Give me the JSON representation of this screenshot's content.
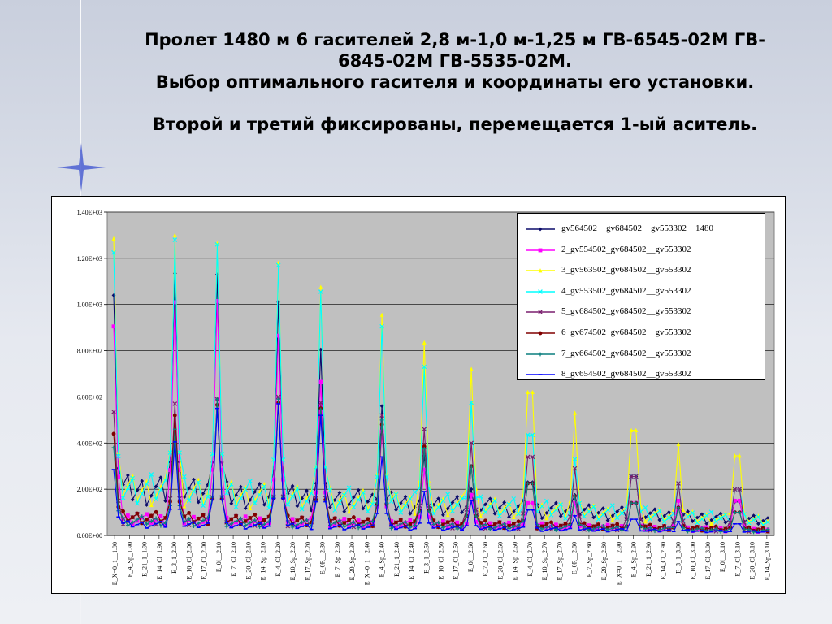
{
  "slide": {
    "title_lines": [
      "Пролет 1480 м 6 гасителей 2,8 м-1,0 м-1,25 м ГВ-6545-02М  ГВ-",
      "6845-02М   ГВ-5535-02М.",
      "Выбор оптимального гасителя и координаты его установки.",
      "Второй и третий фиксированы, перемещается 1-ый аситель."
    ]
  },
  "chart_data": {
    "type": "line",
    "ylim": [
      0,
      1400
    ],
    "ytick_values": [
      0,
      200,
      400,
      600,
      800,
      1000,
      1200,
      1400
    ],
    "ytick_labels": [
      "0.00E+00",
      "2.00E+02",
      "4.00E+02",
      "6.00E+02",
      "8.00E+02",
      "1.00E+03",
      "1.20E+03",
      "1.40E+03"
    ],
    "grid": "horizontal",
    "legend_position": "top-right",
    "x_tick_labels": [
      "E_X=0_1__1.90",
      "E_4_Sp_1.90",
      "E_21_1_1.90",
      "E_14_Cl_1.90",
      "E_3_1_2.00",
      "E_10_Cl_2.00",
      "E_17_Cl_2.00",
      "E_0l__2.10",
      "E_7_Cl_2.10",
      "E_20_Cl_2.10",
      "E_14_Sp_2.10",
      "E_4_Cl_2.20",
      "E_10_Sp_2.20",
      "E_17_Sp_2.20",
      "E_0R__2.30",
      "E_7_Sp_2.30",
      "E_20_Sp_2.30",
      "E_X=0_1__2.40",
      "E_4_Sp_2.40",
      "E_21_1_2.40",
      "E_14_Cl_2.40",
      "E_3_1_2.50",
      "E_10_Cl_2.50",
      "E_17_Cl_2.50",
      "E_0l__2.60",
      "E_7_Cl_2.60",
      "E_20_Cl_2.60",
      "E_14_Sp_2.60",
      "E_4_Cl_2.70",
      "E_10_Sp_2.70",
      "E_17_Sp_2.70",
      "E_0R__2.80",
      "E_7_Sp_2.80",
      "E_20_Sp_2.80",
      "E_X=0_1__2.90",
      "E_4_Sp_2.90",
      "E_21_1_2.90",
      "E_14_Cl_2.90",
      "E_3_1_3.00",
      "E_10_Cl_3.00",
      "E_17_Cl_3.00",
      "E_0l__3.10",
      "E_7_Cl_3.10",
      "E_20_Cl_3.10",
      "E_14_Sp_3.10"
    ],
    "peaks": {
      "positions": [
        "E_X=0_1__1.90",
        "E_3_1_2.00",
        "E_0l__2.10",
        "E_4_Cl_2.20",
        "E_0R__2.30",
        "E_4_Sp_2.40",
        "E_3_1_2.50",
        "E_0l__2.60",
        "E_4_Cl_2.70",
        "E_0R__2.80",
        "E_4_Sp_2.90",
        "E_3_1_3.00",
        "E_7_Cl_3.10"
      ],
      "series_peak_values": [
        [
          1040,
          1135,
          1130,
          1010,
          805,
          560,
          345,
          200,
          230,
          175,
          255,
          125,
          145
        ],
        [
          905,
          1010,
          1015,
          865,
          665,
          450,
          285,
          175,
          140,
          140,
          140,
          150,
          150
        ],
        [
          1285,
          1300,
          1265,
          1180,
          1075,
          955,
          835,
          720,
          620,
          530,
          455,
          395,
          345
        ],
        [
          1225,
          1280,
          1260,
          1170,
          1055,
          905,
          730,
          575,
          435,
          330,
          255,
          225,
          200
        ],
        [
          535,
          570,
          590,
          600,
          575,
          520,
          460,
          400,
          340,
          290,
          255,
          225,
          200
        ],
        [
          440,
          520,
          565,
          575,
          550,
          480,
          385,
          300,
          225,
          170,
          140,
          120,
          100
        ],
        [
          380,
          460,
          590,
          590,
          545,
          500,
          375,
          300,
          225,
          170,
          140,
          120,
          100
        ],
        [
          285,
          405,
          550,
          570,
          520,
          340,
          190,
          150,
          110,
          85,
          70,
          60,
          50
        ]
      ],
      "series_base_values": [
        250,
        90,
        250,
        260,
        90,
        100,
        80,
        60
      ]
    },
    "series": [
      {
        "name": "gv564502__gv684502__gv553302__1480",
        "color": "#0b0b6a",
        "marker": "diamond"
      },
      {
        "name": "2_gv554502_gv684502__gv553302",
        "color": "#ff00ff",
        "marker": "square"
      },
      {
        "name": "3_gv563502_gv684502__gv553302",
        "color": "#ffff00",
        "marker": "triangle"
      },
      {
        "name": "4_gv553502_gv684502__gv553302",
        "color": "#00ffff",
        "marker": "x"
      },
      {
        "name": "5_gv684502_gv684502__gv553302",
        "color": "#7a1e6e",
        "marker": "x"
      },
      {
        "name": "6_gv674502_gv684502__gv553302",
        "color": "#800000",
        "marker": "circle"
      },
      {
        "name": "7_gv664502_gv684502__gv553302",
        "color": "#0a7f7f",
        "marker": "plus"
      },
      {
        "name": "8_gv654502_gv684502__gv553302",
        "color": "#0000ff",
        "marker": "dash"
      }
    ]
  }
}
